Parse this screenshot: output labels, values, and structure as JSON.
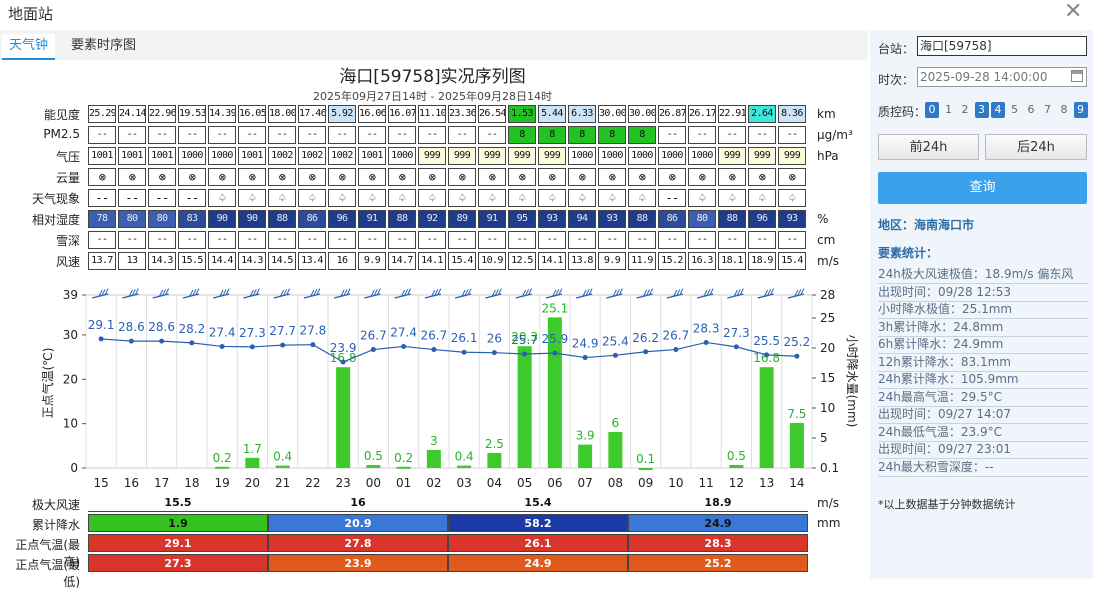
{
  "window": {
    "title": "地面站"
  },
  "tabs": [
    "天气钟",
    "要素时序图"
  ],
  "chart_title": "海口[59758]实况序列图",
  "chart_subtitle": "2025年09月27日14时 - 2025年09月28日14时",
  "hours": [
    "15",
    "16",
    "17",
    "18",
    "19",
    "20",
    "21",
    "22",
    "23",
    "00",
    "01",
    "02",
    "03",
    "04",
    "05",
    "06",
    "07",
    "08",
    "09",
    "10",
    "11",
    "12",
    "13",
    "14"
  ],
  "grid": {
    "rows": [
      {
        "label": "能见度",
        "unit": "km",
        "values": [
          "25.29",
          "24.14",
          "22.96",
          "19.53",
          "14.39",
          "16.05",
          "18.00",
          "17.46",
          "5.92",
          "16.06",
          "16.07",
          "11.10",
          "23.36",
          "26.54",
          "1.53",
          "5.44",
          "6.33",
          "30.00",
          "30.00",
          "26.87",
          "26.17",
          "22.91",
          "2.64",
          "8.36"
        ]
      },
      {
        "label": "PM2.5",
        "unit": "μg/m³",
        "values": [
          "--",
          "--",
          "--",
          "--",
          "--",
          "--",
          "--",
          "--",
          "--",
          "--",
          "--",
          "--",
          "--",
          "--",
          "8",
          "8",
          "8",
          "8",
          "8",
          "--",
          "--",
          "--",
          "--",
          "--"
        ]
      },
      {
        "label": "气压",
        "unit": "hPa",
        "values": [
          "1001",
          "1001",
          "1001",
          "1000",
          "1000",
          "1001",
          "1002",
          "1002",
          "1002",
          "1001",
          "1000",
          "999",
          "999",
          "999",
          "999",
          "999",
          "1000",
          "1000",
          "1000",
          "1000",
          "1000",
          "999",
          "999",
          "999"
        ]
      },
      {
        "label": "云量",
        "unit": "",
        "values": [
          "⊗",
          "⊗",
          "⊗",
          "⊗",
          "⊗",
          "⊗",
          "⊗",
          "⊗",
          "⊗",
          "⊗",
          "⊗",
          "⊗",
          "⊗",
          "⊗",
          "⊗",
          "⊗",
          "⊗",
          "⊗",
          "⊗",
          "⊗",
          "⊗",
          "⊗",
          "⊗",
          "⊗"
        ]
      },
      {
        "label": "天气现象",
        "unit": "",
        "values": [
          "--",
          "--",
          "--",
          "--",
          "♤",
          "♤",
          "♤",
          "♤",
          "♤",
          "♤",
          "♤",
          "♤",
          "♤",
          "♤",
          "♤",
          "♤",
          "♤",
          "♤",
          "♤",
          "--",
          "♤",
          "♤",
          "♤",
          "♤"
        ]
      },
      {
        "label": "相对湿度",
        "unit": "%",
        "values": [
          "78",
          "80",
          "80",
          "83",
          "90",
          "90",
          "88",
          "86",
          "96",
          "91",
          "88",
          "92",
          "89",
          "91",
          "95",
          "93",
          "94",
          "93",
          "88",
          "86",
          "80",
          "88",
          "96",
          "93"
        ]
      },
      {
        "label": "雪深",
        "unit": "cm",
        "values": [
          "--",
          "--",
          "--",
          "--",
          "--",
          "--",
          "--",
          "--",
          "--",
          "--",
          "--",
          "--",
          "--",
          "--",
          "--",
          "--",
          "--",
          "--",
          "--",
          "--",
          "--",
          "--",
          "--",
          "--"
        ]
      },
      {
        "label": "风速",
        "unit": "m/s",
        "values": [
          "13.7",
          "13",
          "14.3",
          "15.5",
          "14.4",
          "14.3",
          "14.5",
          "13.4",
          "16",
          "9.9",
          "14.7",
          "14.1",
          "15.4",
          "10.9",
          "12.5",
          "14.1",
          "13.8",
          "9.9",
          "11.9",
          "15.2",
          "16.3",
          "18.1",
          "18.9",
          "15.4"
        ]
      }
    ]
  },
  "chart_data": {
    "type": "bar+line",
    "x": [
      "15",
      "16",
      "17",
      "18",
      "19",
      "20",
      "21",
      "22",
      "23",
      "00",
      "01",
      "02",
      "03",
      "04",
      "05",
      "06",
      "07",
      "08",
      "09",
      "10",
      "11",
      "12",
      "13",
      "14"
    ],
    "left_axis": {
      "label": "正点气温(℃)",
      "ylim": [
        0,
        39
      ],
      "ticks": [
        0,
        10,
        20,
        30,
        39
      ]
    },
    "right_axis": {
      "label": "小时降水量(mm)",
      "ticks": [
        "0.1",
        "5",
        "10",
        "15",
        "20",
        "25",
        "28"
      ]
    },
    "temperature": [
      29.1,
      28.6,
      28.6,
      28.2,
      27.4,
      27.3,
      27.7,
      27.8,
      23.9,
      26.7,
      27.4,
      26.7,
      26.1,
      26,
      25.7,
      25.9,
      24.9,
      25.4,
      26.2,
      26.7,
      28.3,
      27.3,
      25.5,
      25.2
    ],
    "precip_labels": [
      null,
      null,
      null,
      null,
      "0.2",
      "1.7",
      "0.4",
      null,
      "16.8",
      "0.5",
      "0.2",
      "3",
      "0.4",
      "2.5",
      "20.3",
      "25.1",
      "3.9",
      "6",
      null,
      null,
      null,
      "0.5",
      "16.8",
      "7.5"
    ],
    "precip": [
      null,
      null,
      null,
      null,
      0.2,
      1.7,
      0.4,
      null,
      16.8,
      0.5,
      0.2,
      3,
      0.4,
      2.5,
      20.3,
      25.1,
      3.9,
      6,
      0.1,
      null,
      null,
      0.5,
      16.8,
      7.5
    ],
    "colors": {
      "temp_line": "#2b5fb4",
      "precip_bar": "#3ccb2b"
    }
  },
  "summary": {
    "rows": [
      {
        "label": "极大风速",
        "unit": "m/s",
        "values": [
          "15.5",
          "16",
          "15.4",
          "18.9"
        ],
        "colors": [
          "#ffffff",
          "#ffffff",
          "#ffffff",
          "#ffffff"
        ],
        "text_colors": [
          "#111",
          "#111",
          "#111",
          "#111"
        ]
      },
      {
        "label": "累计降水",
        "unit": "mm",
        "values": [
          "1.9",
          "20.9",
          "58.2",
          "24.9"
        ],
        "colors": [
          "#34c31e",
          "#3a78d8",
          "#1c3aa6",
          "#3a78d8"
        ],
        "text_colors": [
          "#111",
          "#fff",
          "#fff",
          "#111"
        ]
      },
      {
        "label": "正点气温(最高)",
        "unit": "",
        "values": [
          "29.1",
          "27.8",
          "26.1",
          "28.3"
        ],
        "colors": [
          "#d9352b",
          "#d9352b",
          "#d9352b",
          "#d9352b"
        ],
        "text_colors": [
          "#fff",
          "#fff",
          "#fff",
          "#fff"
        ]
      },
      {
        "label": "正点气温(最低)",
        "unit": "",
        "values": [
          "27.3",
          "23.9",
          "24.9",
          "25.2"
        ],
        "colors": [
          "#d9352b",
          "#e05a1e",
          "#e05a1e",
          "#e05a1e"
        ],
        "text_colors": [
          "#fff",
          "#fff",
          "#fff",
          "#fff"
        ]
      }
    ]
  },
  "sidebar": {
    "station_label": "台站：",
    "station_value": "海口[59758]",
    "time_label": "时次：",
    "time_value": "2025-09-28 14:00:00",
    "qc_label": "质控码：",
    "qc_codes": [
      "0",
      "1",
      "2",
      "3",
      "4",
      "5",
      "6",
      "7",
      "8",
      "9"
    ],
    "qc_active": [
      "0",
      "3",
      "4",
      "9"
    ],
    "prev_btn": "前24h",
    "next_btn": "后24h",
    "query_btn": "查询",
    "region": "地区：海南海口市",
    "stats_title": "要素统计：",
    "stats": [
      {
        "k": "24h极大风速极值：",
        "v": "18.9m/s 偏东风"
      },
      {
        "k": "出现时间：",
        "v": "09/28 12:53"
      },
      {
        "k": "小时降水极值：",
        "v": "25.1mm"
      },
      {
        "k": "3h累计降水：",
        "v": "24.8mm"
      },
      {
        "k": "6h累计降水：",
        "v": "24.9mm"
      },
      {
        "k": "12h累计降水：",
        "v": "83.1mm"
      },
      {
        "k": "24h累计降水：",
        "v": "105.9mm"
      },
      {
        "k": "24h最高气温：",
        "v": "29.5°C"
      },
      {
        "k": "出现时间：",
        "v": "09/27 14:07"
      },
      {
        "k": "24h最低气温：",
        "v": "23.9°C"
      },
      {
        "k": "出现时间：",
        "v": "09/27 23:01"
      },
      {
        "k": "24h最大积雪深度：",
        "v": "--"
      }
    ],
    "footnote": "*以上数据基于分钟数据统计"
  }
}
